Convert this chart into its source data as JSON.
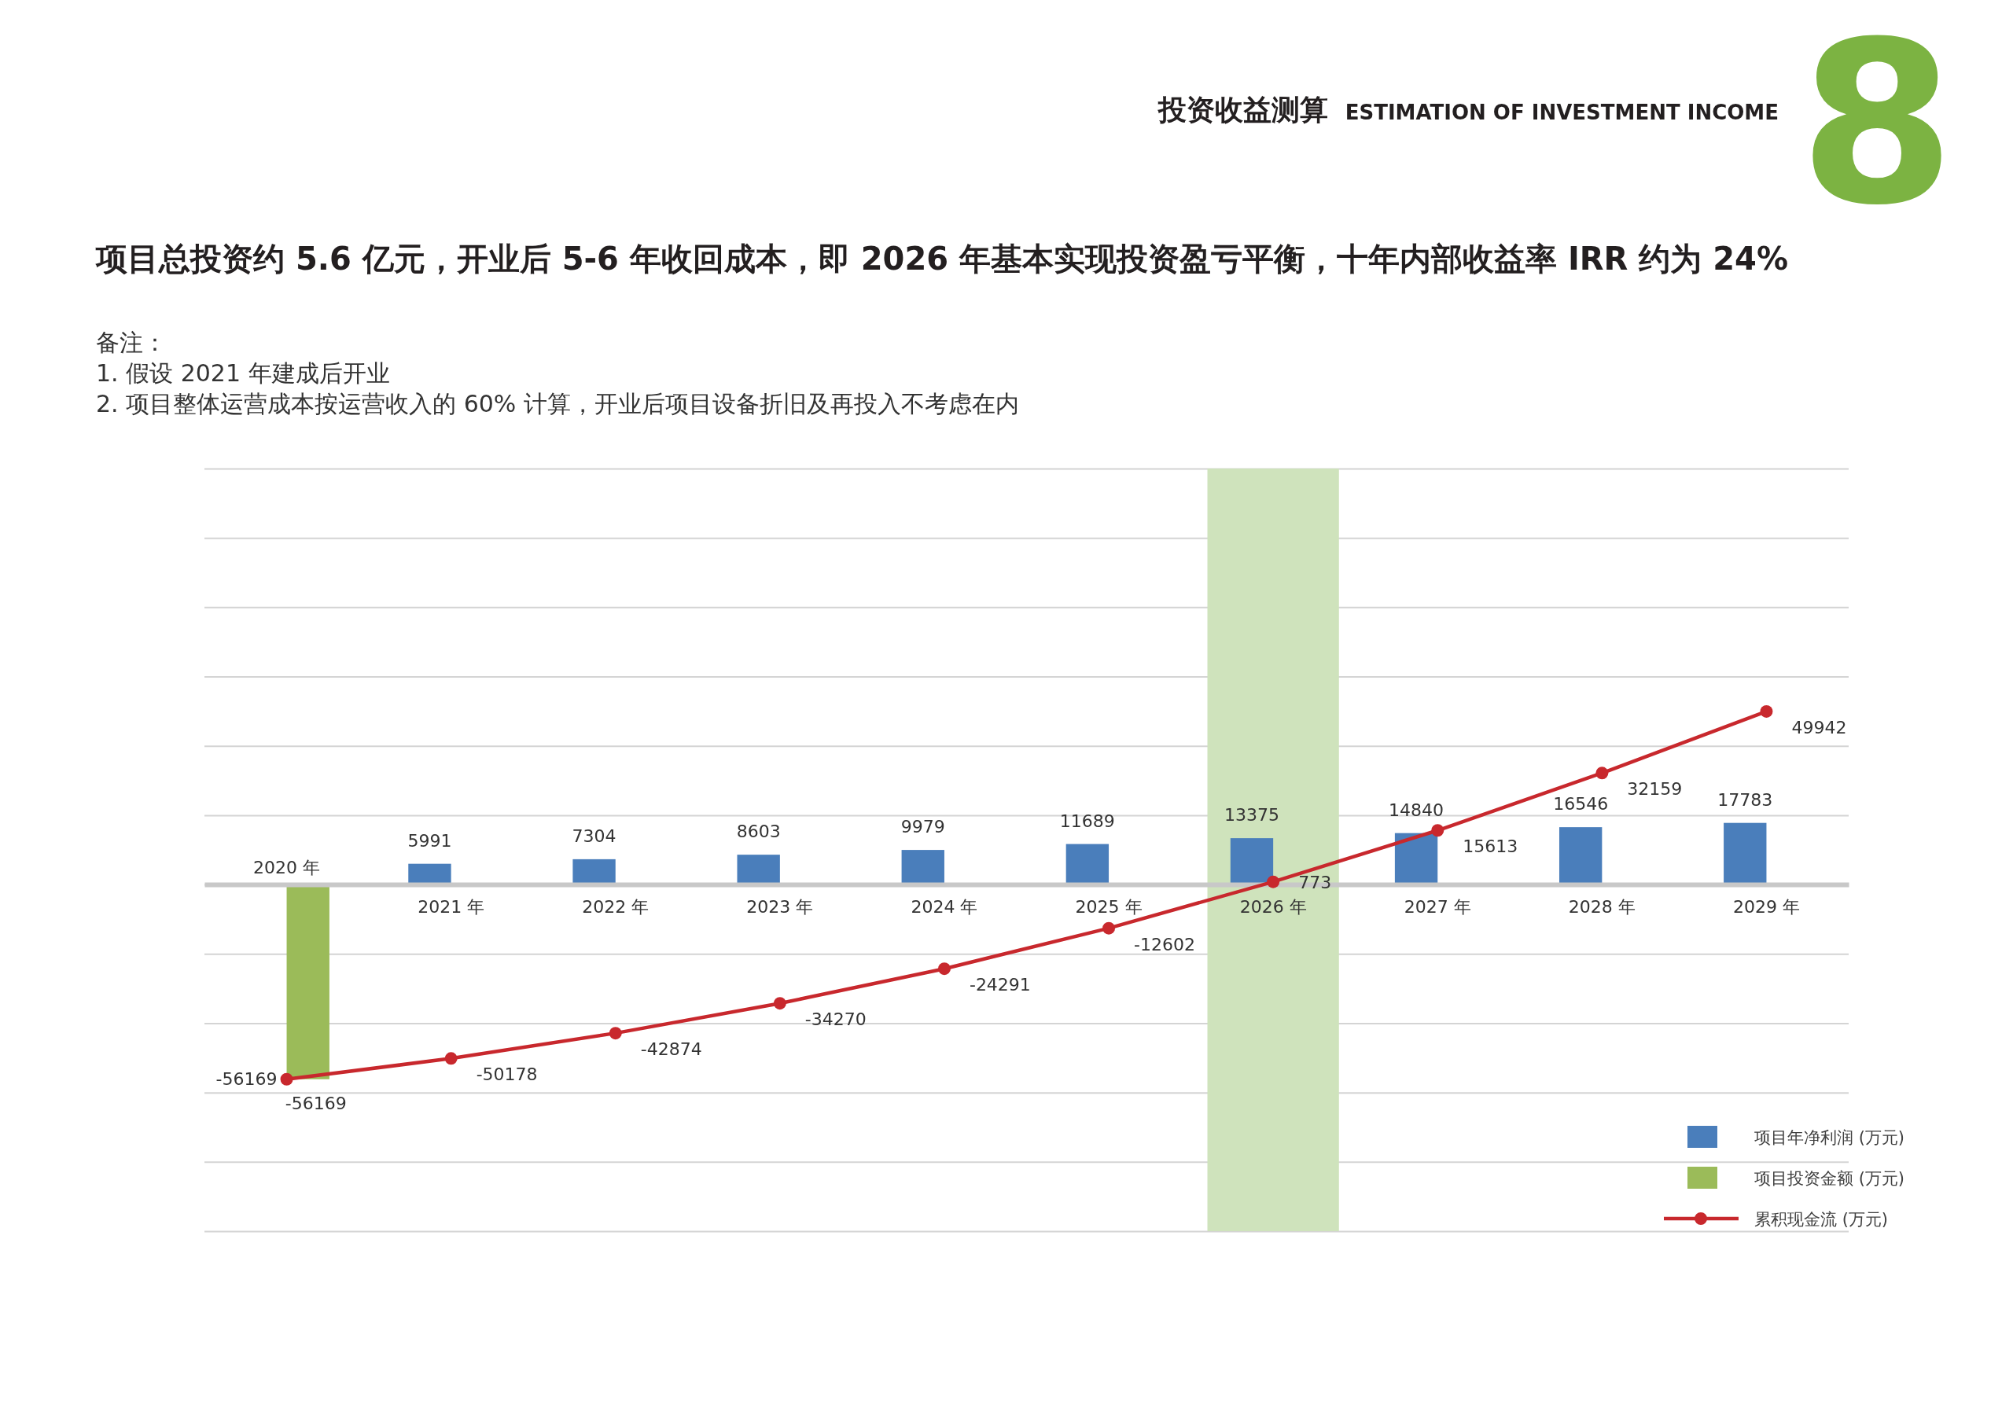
{
  "chart_data": {
    "type": "bar",
    "title": "投资收益测算 ESTIMATION OF INVESTMENT INCOME",
    "subtitle": "项目总投资约 5.6 亿元，开业后 5-6 年收回成本，即 2026 年基本实现投资盈亏平衡，十年内部收益率 IRR 约为 24%",
    "annotations": [
      "8",
      "备注：",
      "1. 假设 2021 年建成后开业",
      "2. 项目整体运营成本按运营收入的 60% 计算，开业后项目设备折旧及再投入不考虑在内"
    ],
    "categories": [
      "2020 年",
      "2021 年",
      "2022 年",
      "2023 年",
      "2024 年",
      "2025 年",
      "2026 年",
      "2027 年",
      "2028 年",
      "2029 年"
    ],
    "series": [
      {
        "name": "项目年净利润 (万元)",
        "color": "#4a7ebb",
        "values": [
          null,
          5991,
          7304,
          8603,
          9979,
          11689,
          13375,
          14840,
          16546,
          17783
        ]
      },
      {
        "name": "项目投资金额 (万元)",
        "color": "#9bbb59",
        "values": [
          -56169,
          null,
          null,
          null,
          null,
          null,
          null,
          null,
          null,
          null
        ]
      },
      {
        "name": "累积现金流 (万元)",
        "type": "line",
        "color": "#c8282d",
        "values": [
          -56169,
          -50178,
          -42874,
          -34270,
          -24291,
          -12602,
          773,
          15613,
          32159,
          49942
        ]
      }
    ],
    "ylim": [
      -100000,
      120000
    ],
    "yticks": [
      {
        "value": -100000,
        "label": null
      },
      {
        "value": -80000,
        "label": null
      },
      {
        "value": -60000,
        "label": null
      },
      {
        "value": -40000,
        "label": null
      },
      {
        "value": -20000,
        "label": null
      },
      {
        "value": 0,
        "label": null
      },
      {
        "value": 20000,
        "label": null
      },
      {
        "value": 40000,
        "label": null
      },
      {
        "value": 60000,
        "label": null
      },
      {
        "value": 80000,
        "label": null
      },
      {
        "value": 100000,
        "label": null
      },
      {
        "value": 120000,
        "label": null
      }
    ],
    "grid": "y",
    "tick_labels": "x",
    "legend": "bottom right",
    "marker": "circle",
    "line_style": "solid",
    "data_labels": true,
    "bands": [
      {
        "axis": "x",
        "from": "2026 年",
        "to": "2026 年",
        "color": "#cfe3bc"
      }
    ]
  }
}
